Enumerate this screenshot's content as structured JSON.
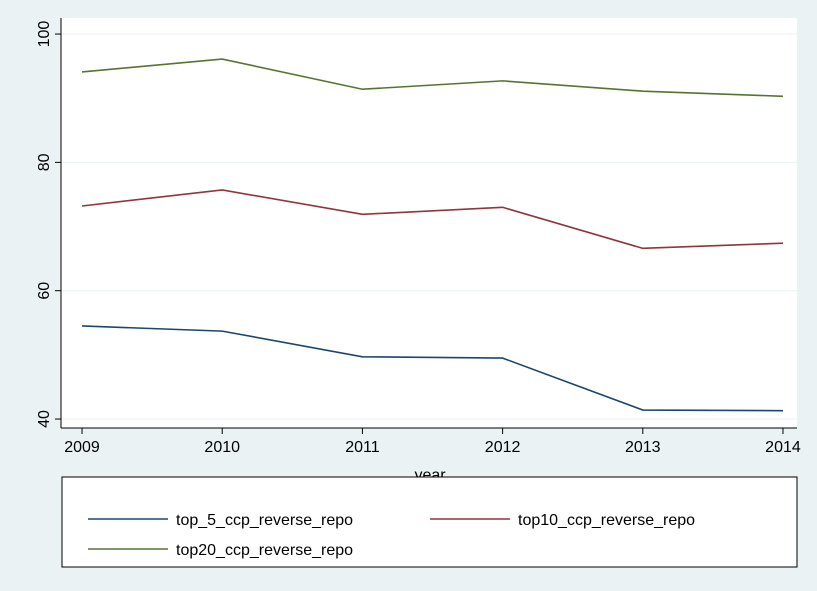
{
  "chart_data": {
    "type": "line",
    "x": [
      2009,
      2010,
      2011,
      2012,
      2013,
      2014
    ],
    "series": [
      {
        "name": "top_5_ccp_reverse_repo",
        "color": "#1a476f",
        "values": [
          54.5,
          53.7,
          49.7,
          49.5,
          41.4,
          41.3
        ]
      },
      {
        "name": "top10_ccp_reverse_repo",
        "color": "#90353b",
        "values": [
          73.2,
          75.7,
          71.9,
          73.0,
          66.6,
          67.4
        ]
      },
      {
        "name": "top20_ccp_reverse_repo",
        "color": "#55752f",
        "values": [
          94.1,
          96.1,
          91.4,
          92.7,
          91.1,
          90.3
        ]
      }
    ],
    "xlabel": "year",
    "xlim": [
      2008.85,
      2014.1
    ],
    "xticks": [
      2009,
      2010,
      2011,
      2012,
      2013,
      2014
    ],
    "ylim": [
      38.6,
      102.5
    ],
    "yticks": [
      40,
      60,
      80,
      100
    ],
    "grid": true,
    "legend": "bottom"
  }
}
